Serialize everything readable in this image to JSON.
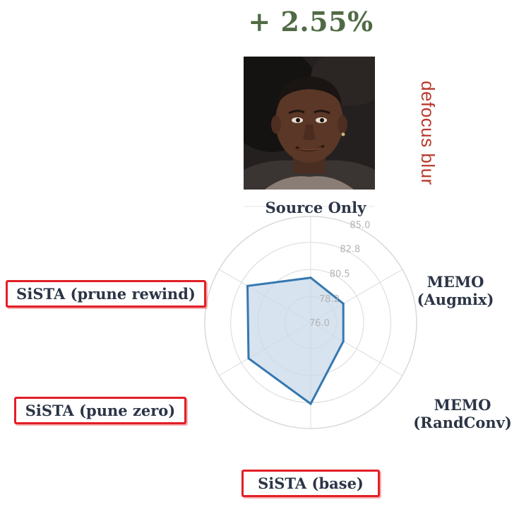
{
  "headline": "+ 2.55%",
  "corruption": "defocus blur",
  "colors": {
    "headline": "#4f6b45",
    "corruption_label": "#b83a2e",
    "series_line": "#3478b0",
    "series_fill": "#c9d9ea",
    "highlight_box": "#e21f26",
    "axis_label": "#2c3546"
  },
  "chart_data": {
    "type": "radar",
    "axes": [
      "Source Only",
      "MEMO (Augmix)",
      "MEMO (RandConv)",
      "SiSTA (base)",
      "SiSTA (pune zero)",
      "SiSTA (prune rewind)"
    ],
    "highlighted_axes": [
      "SiSTA (base)",
      "SiSTA (pune zero)",
      "SiSTA (prune rewind)"
    ],
    "radial_ticks": [
      "76.0",
      "78.2",
      "80.5",
      "82.8",
      "85.0"
    ],
    "rmin": 76.0,
    "rmax": 85.0,
    "grid": true,
    "series": [
      {
        "values": [
          79.8,
          79.2,
          79.2,
          82.9,
          82.1,
          82.2
        ]
      }
    ]
  }
}
